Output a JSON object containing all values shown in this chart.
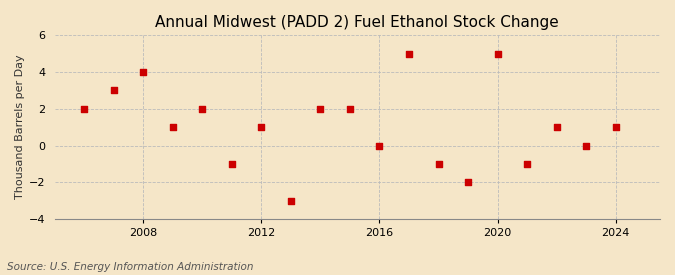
{
  "title": "Annual Midwest (PADD 2) Fuel Ethanol Stock Change",
  "ylabel": "Thousand Barrels per Day",
  "source": "Source: U.S. Energy Information Administration",
  "background_color": "#f5e6c8",
  "plot_background_color": "#f5e6c8",
  "years": [
    2006,
    2007,
    2008,
    2009,
    2010,
    2011,
    2012,
    2013,
    2014,
    2015,
    2016,
    2017,
    2018,
    2019,
    2020,
    2021,
    2022,
    2023,
    2024
  ],
  "values": [
    2,
    3,
    4,
    1,
    2,
    -1,
    1,
    -3,
    2,
    2,
    0,
    5,
    -1,
    -2,
    5,
    -1,
    1,
    0,
    1
  ],
  "marker_color": "#cc0000",
  "marker_size": 4,
  "ylim": [
    -4,
    6
  ],
  "yticks": [
    -4,
    -2,
    0,
    2,
    4,
    6
  ],
  "xlim": [
    2005,
    2025.5
  ],
  "xticks": [
    2008,
    2012,
    2016,
    2020,
    2024
  ],
  "grid_color": "#bbbbbb",
  "vline_color": "#bbbbbb",
  "title_fontsize": 11,
  "axis_fontsize": 8,
  "source_fontsize": 7.5,
  "ylabel_fontsize": 8
}
